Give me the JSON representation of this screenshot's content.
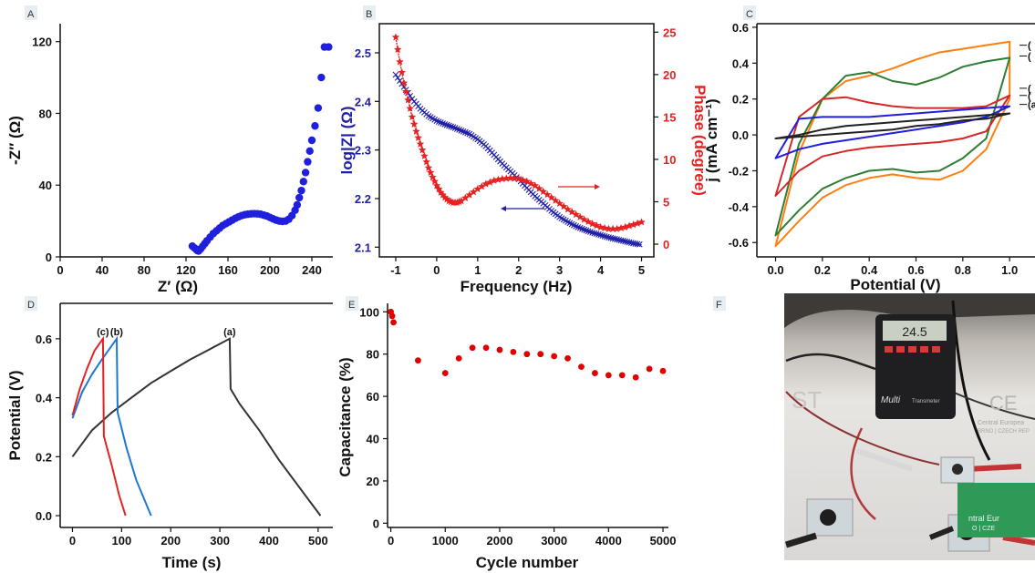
{
  "panels": {
    "A": "A",
    "B": "B",
    "C": "C",
    "D": "D",
    "E": "E",
    "F": "F"
  },
  "chart_data": [
    {
      "panel": "A",
      "type": "scatter",
      "xlabel": "Z′ (Ω)",
      "ylabel": "-Z″ (Ω)",
      "xlim": [
        0,
        260
      ],
      "ylim": [
        0,
        130
      ],
      "xticks": [
        "0",
        "40",
        "80",
        "120",
        "160",
        "200",
        "240"
      ],
      "yticks": [
        "0",
        "40",
        "80",
        "120"
      ],
      "color": "#1f1fdd",
      "series": [
        {
          "x": [
            126,
            128,
            130,
            131,
            132,
            134,
            136,
            138,
            140,
            143,
            146,
            149,
            152,
            155,
            158,
            161,
            164,
            167,
            170,
            173,
            176,
            179,
            182,
            185,
            188,
            191,
            194,
            197,
            200,
            203,
            206,
            209,
            212,
            215,
            218,
            221,
            224,
            226,
            228,
            230,
            232,
            234,
            236,
            238,
            240,
            243,
            246,
            249,
            252,
            256
          ],
          "y": [
            6,
            5,
            4,
            3.5,
            3.3,
            4.5,
            6,
            7.5,
            9,
            11,
            13,
            14.5,
            16,
            17.5,
            18.5,
            19.5,
            20.5,
            21.5,
            22.3,
            23,
            23.5,
            23.8,
            24,
            24.1,
            24,
            23.8,
            23.3,
            22.8,
            22,
            21.2,
            20.5,
            20,
            19.8,
            20,
            21,
            23,
            26,
            29,
            33,
            37,
            42,
            47,
            53,
            59,
            65,
            73,
            83,
            100,
            117,
            117
          ]
        }
      ]
    },
    {
      "panel": "B",
      "type": "line",
      "xlabel": "Frequency (Hz)",
      "ylabel": "log|Z| (Ω)",
      "ylabel_right": "Phase (degree)",
      "xlim": [
        -1.4,
        5.3
      ],
      "ylim": [
        2.08,
        2.56
      ],
      "ylim_right": [
        -1.5,
        26
      ],
      "xticks": [
        "-1",
        "0",
        "1",
        "2",
        "3",
        "4",
        "5"
      ],
      "yticks": [
        "2.1",
        "2.2",
        "2.3",
        "2.4",
        "2.5"
      ],
      "yticks_right": [
        "0",
        "5",
        "10",
        "15",
        "20",
        "25"
      ],
      "series": [
        {
          "axis": "left",
          "color": "#1f1fa8",
          "x": [
            -1,
            -0.8,
            -0.6,
            -0.4,
            -0.2,
            0,
            0.2,
            0.4,
            0.6,
            0.8,
            1,
            1.2,
            1.4,
            1.6,
            1.8,
            2,
            2.2,
            2.4,
            2.6,
            2.8,
            3,
            3.2,
            3.4,
            3.6,
            3.8,
            4,
            4.2,
            4.4,
            4.6,
            4.8,
            5
          ],
          "y": [
            2.455,
            2.43,
            2.405,
            2.385,
            2.37,
            2.36,
            2.353,
            2.347,
            2.34,
            2.333,
            2.322,
            2.308,
            2.29,
            2.272,
            2.256,
            2.24,
            2.222,
            2.205,
            2.19,
            2.175,
            2.162,
            2.152,
            2.143,
            2.136,
            2.13,
            2.125,
            2.12,
            2.116,
            2.112,
            2.108,
            2.105
          ]
        },
        {
          "axis": "right",
          "color": "#e52222",
          "x": [
            -1,
            -0.9,
            -0.8,
            -0.7,
            -0.6,
            -0.5,
            -0.4,
            -0.3,
            -0.2,
            -0.1,
            0,
            0.1,
            0.2,
            0.3,
            0.4,
            0.5,
            0.6,
            0.8,
            1,
            1.2,
            1.4,
            1.6,
            1.8,
            2,
            2.2,
            2.4,
            2.6,
            2.8,
            3,
            3.2,
            3.4,
            3.6,
            3.8,
            4,
            4.2,
            4.4,
            4.6,
            4.8,
            5
          ],
          "y": [
            24.4,
            21.5,
            19,
            17,
            15,
            13.3,
            11.8,
            10.4,
            9,
            7.9,
            6.9,
            6.1,
            5.5,
            5.1,
            4.9,
            4.9,
            5.1,
            5.8,
            6.5,
            7.1,
            7.5,
            7.7,
            7.8,
            7.7,
            7.4,
            6.9,
            6.2,
            5.5,
            4.8,
            4.1,
            3.5,
            2.9,
            2.4,
            2,
            1.8,
            1.8,
            2,
            2.3,
            2.6
          ]
        }
      ]
    },
    {
      "panel": "C",
      "type": "line",
      "xlabel": "Potential (V)",
      "ylabel": "j (mA cm⁻¹)",
      "xlim": [
        -0.08,
        1.05
      ],
      "ylim": [
        -0.68,
        0.62
      ],
      "xticks": [
        "0.0",
        "0.2",
        "0.4",
        "0.6",
        "0.8",
        "1.0"
      ],
      "yticks": [
        "-0.6",
        "-0.4",
        "-0.2",
        "0.0",
        "0.2",
        "0.4",
        "0.6"
      ],
      "curve_labels": [
        "(",
        "(",
        "(",
        "(",
        "(a"
      ],
      "series": [
        {
          "color": "#ff7f0e",
          "upper": {
            "x": [
              0,
              0.1,
              0.2,
              0.3,
              0.4,
              0.5,
              0.6,
              0.7,
              0.8,
              0.9,
              1.0
            ],
            "y": [
              -0.62,
              -0.1,
              0.2,
              0.3,
              0.33,
              0.37,
              0.42,
              0.46,
              0.48,
              0.5,
              0.52
            ]
          },
          "lower": {
            "x": [
              0,
              0.1,
              0.2,
              0.3,
              0.4,
              0.5,
              0.6,
              0.7,
              0.8,
              0.9,
              1.0
            ],
            "y": [
              -0.62,
              -0.48,
              -0.35,
              -0.28,
              -0.24,
              -0.22,
              -0.24,
              -0.25,
              -0.2,
              -0.08,
              0.2
            ]
          }
        },
        {
          "color": "#2e7d32",
          "upper": {
            "x": [
              0,
              0.1,
              0.2,
              0.3,
              0.4,
              0.5,
              0.6,
              0.7,
              0.8,
              0.9,
              1.0
            ],
            "y": [
              -0.56,
              -0.05,
              0.2,
              0.33,
              0.35,
              0.3,
              0.28,
              0.32,
              0.38,
              0.41,
              0.43
            ]
          },
          "lower": {
            "x": [
              0,
              0.1,
              0.2,
              0.3,
              0.4,
              0.5,
              0.6,
              0.7,
              0.8,
              0.9,
              1.0
            ],
            "y": [
              -0.56,
              -0.42,
              -0.3,
              -0.24,
              -0.2,
              -0.19,
              -0.21,
              -0.2,
              -0.13,
              -0.02,
              0.43
            ]
          }
        },
        {
          "color": "#d62728",
          "upper": {
            "x": [
              0,
              0.1,
              0.2,
              0.3,
              0.4,
              0.5,
              0.6,
              0.7,
              0.8,
              0.9,
              1.0
            ],
            "y": [
              -0.34,
              0.1,
              0.2,
              0.21,
              0.18,
              0.16,
              0.15,
              0.15,
              0.15,
              0.16,
              0.22
            ]
          },
          "lower": {
            "x": [
              0,
              0.1,
              0.2,
              0.3,
              0.4,
              0.5,
              0.6,
              0.7,
              0.8,
              0.9,
              1.0
            ],
            "y": [
              -0.34,
              -0.2,
              -0.12,
              -0.09,
              -0.07,
              -0.06,
              -0.05,
              -0.04,
              -0.02,
              0.02,
              0.22
            ]
          }
        },
        {
          "color": "#1f1fdd",
          "upper": {
            "x": [
              0,
              0.1,
              0.2,
              0.3,
              0.4,
              0.5,
              0.6,
              0.7,
              0.8,
              0.9,
              1.0
            ],
            "y": [
              -0.13,
              0.09,
              0.1,
              0.1,
              0.1,
              0.11,
              0.12,
              0.13,
              0.14,
              0.15,
              0.16
            ]
          },
          "lower": {
            "x": [
              0,
              0.1,
              0.2,
              0.3,
              0.4,
              0.5,
              0.6,
              0.7,
              0.8,
              0.9,
              1.0
            ],
            "y": [
              -0.13,
              -0.08,
              -0.05,
              -0.03,
              -0.01,
              0.01,
              0.03,
              0.05,
              0.07,
              0.1,
              0.16
            ]
          }
        },
        {
          "color": "#222222",
          "upper": {
            "x": [
              0,
              0.1,
              0.2,
              0.3,
              0.4,
              0.5,
              0.6,
              0.7,
              0.8,
              0.9,
              1.0
            ],
            "y": [
              -0.02,
              0.0,
              0.03,
              0.05,
              0.06,
              0.07,
              0.08,
              0.09,
              0.1,
              0.11,
              0.12
            ]
          },
          "lower": {
            "x": [
              0,
              0.1,
              0.2,
              0.3,
              0.4,
              0.5,
              0.6,
              0.7,
              0.8,
              0.9,
              1.0
            ],
            "y": [
              -0.02,
              -0.01,
              0.0,
              0.01,
              0.02,
              0.03,
              0.05,
              0.06,
              0.08,
              0.09,
              0.12
            ]
          }
        }
      ]
    },
    {
      "panel": "D",
      "type": "line",
      "xlabel": "Time (s)",
      "ylabel": "Potential (V)",
      "xlim": [
        -25,
        530
      ],
      "ylim": [
        -0.04,
        0.72
      ],
      "xticks": [
        "0",
        "100",
        "200",
        "300",
        "400",
        "500"
      ],
      "yticks": [
        "0.0",
        "0.2",
        "0.4",
        "0.6"
      ],
      "series": [
        {
          "name": "(a)",
          "color": "#333333",
          "x": [
            0,
            40,
            80,
            120,
            160,
            200,
            240,
            280,
            320,
            322,
            340,
            380,
            420,
            460,
            505
          ],
          "y": [
            0.2,
            0.29,
            0.35,
            0.4,
            0.45,
            0.49,
            0.53,
            0.565,
            0.6,
            0.43,
            0.38,
            0.29,
            0.19,
            0.1,
            0.0
          ]
        },
        {
          "name": "(b)",
          "color": "#1f77d4",
          "x": [
            0,
            20,
            40,
            60,
            75,
            90,
            92,
            110,
            130,
            160
          ],
          "y": [
            0.33,
            0.42,
            0.48,
            0.53,
            0.565,
            0.6,
            0.35,
            0.23,
            0.12,
            0.0
          ]
        },
        {
          "name": "(c)",
          "color": "#e52222",
          "x": [
            0,
            15,
            30,
            45,
            62,
            64,
            80,
            95,
            108
          ],
          "y": [
            0.34,
            0.43,
            0.5,
            0.56,
            0.6,
            0.27,
            0.17,
            0.07,
            0.0
          ]
        }
      ]
    },
    {
      "panel": "E",
      "type": "scatter",
      "xlabel": "Cycle number",
      "ylabel": "Capacitance (%)",
      "xlim": [
        -60,
        5100
      ],
      "ylim": [
        -2,
        104
      ],
      "xticks": [
        "0",
        "1000",
        "2000",
        "3000",
        "4000",
        "5000"
      ],
      "yticks": [
        "0",
        "20",
        "40",
        "60",
        "80",
        "100"
      ],
      "color": "#e00000",
      "series": [
        {
          "x": [
            0,
            25,
            50,
            500,
            1000,
            1250,
            1500,
            1750,
            2000,
            2250,
            2500,
            2750,
            3000,
            3250,
            3500,
            3750,
            4000,
            4250,
            4500,
            4750,
            5000
          ],
          "y": [
            100,
            98,
            95,
            77,
            71,
            78,
            83,
            83,
            82,
            81,
            80,
            80,
            79,
            78,
            74,
            71,
            70,
            70,
            69,
            73,
            72
          ]
        }
      ]
    }
  ],
  "photo": {
    "meter_display": "24.5",
    "meter_brand": "Multi",
    "meter_sub": "Transmeter",
    "sign_text": "CE",
    "sign_sub": "Central Europea",
    "sign_sub2": "BRNO | CZECH REP",
    "card_text": "ntral Eur",
    "card_sub": "O | CZE"
  }
}
